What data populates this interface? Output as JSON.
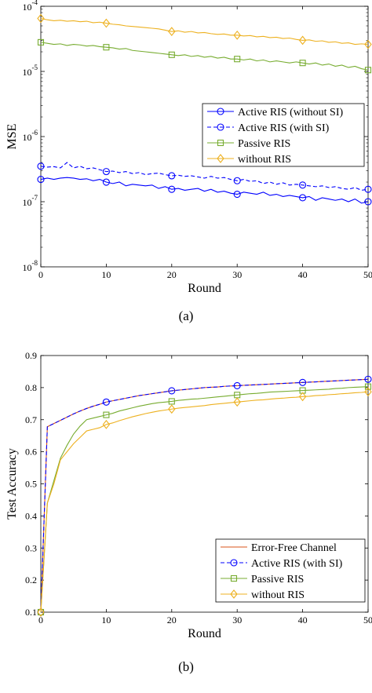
{
  "chart_data": [
    {
      "type": "line",
      "caption": "(a)",
      "xlabel": "Round",
      "ylabel": "MSE",
      "xlim": [
        0,
        50
      ],
      "ylim": [
        1e-08,
        0.0001
      ],
      "yscale": "log",
      "x_ticks": [
        0,
        10,
        20,
        30,
        40,
        50
      ],
      "y_tick_labels": [
        {
          "base": "10",
          "exp": "-8"
        },
        {
          "base": "10",
          "exp": "-7"
        },
        {
          "base": "10",
          "exp": "-6"
        },
        {
          "base": "10",
          "exp": "-5"
        },
        {
          "base": "10",
          "exp": "-4"
        }
      ],
      "grid": false,
      "legend_position": "center-right",
      "x": [
        0,
        1,
        2,
        3,
        4,
        5,
        6,
        7,
        8,
        9,
        10,
        11,
        12,
        13,
        14,
        15,
        16,
        17,
        18,
        19,
        20,
        21,
        22,
        23,
        24,
        25,
        26,
        27,
        28,
        29,
        30,
        31,
        32,
        33,
        34,
        35,
        36,
        37,
        38,
        39,
        40,
        41,
        42,
        43,
        44,
        45,
        46,
        47,
        48,
        49,
        50
      ],
      "series": [
        {
          "name": "Active RIS (without SI)",
          "color": "#0000ff",
          "dash": "solid",
          "marker": "circle",
          "values": [
            2.2e-07,
            2.3e-07,
            2.2e-07,
            2.3e-07,
            2.35e-07,
            2.3e-07,
            2.2e-07,
            2.25e-07,
            2.1e-07,
            2.2e-07,
            2e-07,
            1.9e-07,
            2e-07,
            1.75e-07,
            1.85e-07,
            1.8e-07,
            1.75e-07,
            1.8e-07,
            1.6e-07,
            1.7e-07,
            1.55e-07,
            1.6e-07,
            1.5e-07,
            1.55e-07,
            1.6e-07,
            1.45e-07,
            1.55e-07,
            1.4e-07,
            1.45e-07,
            1.35e-07,
            1.3e-07,
            1.4e-07,
            1.35e-07,
            1.3e-07,
            1.4e-07,
            1.25e-07,
            1.3e-07,
            1.2e-07,
            1.25e-07,
            1.2e-07,
            1.15e-07,
            1.2e-07,
            1.05e-07,
            1.15e-07,
            1.1e-07,
            1.05e-07,
            1.1e-07,
            1e-07,
            1.1e-07,
            9.5e-08,
            1e-07
          ]
        },
        {
          "name": "Active RIS (with SI)",
          "color": "#0000ff",
          "dash": "dashed",
          "marker": "circle",
          "values": [
            3.5e-07,
            3.4e-07,
            3.45e-07,
            3.3e-07,
            4e-07,
            3.3e-07,
            3.5e-07,
            3.2e-07,
            3.3e-07,
            3.1e-07,
            2.9e-07,
            2.95e-07,
            2.8e-07,
            2.9e-07,
            2.7e-07,
            2.8e-07,
            2.6e-07,
            2.7e-07,
            2.75e-07,
            2.6e-07,
            2.5e-07,
            2.55e-07,
            2.45e-07,
            2.5e-07,
            2.4e-07,
            2.3e-07,
            2.45e-07,
            2.3e-07,
            2.35e-07,
            2.2e-07,
            2.1e-07,
            2.2e-07,
            2.05e-07,
            2.1e-07,
            1.9e-07,
            2e-07,
            1.85e-07,
            1.95e-07,
            1.8e-07,
            1.85e-07,
            1.8e-07,
            1.75e-07,
            1.7e-07,
            1.75e-07,
            1.65e-07,
            1.7e-07,
            1.6e-07,
            1.55e-07,
            1.65e-07,
            1.5e-07,
            1.55e-07
          ]
        },
        {
          "name": "Passive RIS",
          "color": "#77ac30",
          "dash": "solid",
          "marker": "square",
          "values": [
            2.8e-05,
            2.7e-05,
            2.6e-05,
            2.65e-05,
            2.5e-05,
            2.6e-05,
            2.55e-05,
            2.45e-05,
            2.5e-05,
            2.4e-05,
            2.35e-05,
            2.3e-05,
            2.2e-05,
            2.25e-05,
            2.1e-05,
            2.05e-05,
            2e-05,
            1.95e-05,
            1.9e-05,
            1.85e-05,
            1.8e-05,
            1.75e-05,
            1.8e-05,
            1.7e-05,
            1.75e-05,
            1.65e-05,
            1.7e-05,
            1.6e-05,
            1.65e-05,
            1.55e-05,
            1.55e-05,
            1.5e-05,
            1.55e-05,
            1.45e-05,
            1.5e-05,
            1.4e-05,
            1.45e-05,
            1.4e-05,
            1.35e-05,
            1.4e-05,
            1.35e-05,
            1.3e-05,
            1.35e-05,
            1.25e-05,
            1.3e-05,
            1.2e-05,
            1.25e-05,
            1.15e-05,
            1.2e-05,
            1.1e-05,
            1.05e-05
          ]
        },
        {
          "name": "without RIS",
          "color": "#edb120",
          "dash": "solid",
          "marker": "diamond",
          "values": [
            6.5e-05,
            6.2e-05,
            6e-05,
            6.1e-05,
            5.9e-05,
            6e-05,
            5.8e-05,
            5.9e-05,
            5.6e-05,
            5.7e-05,
            5.5e-05,
            5.3e-05,
            5.2e-05,
            5e-05,
            4.9e-05,
            4.8e-05,
            4.7e-05,
            4.6e-05,
            4.5e-05,
            4.3e-05,
            4.1e-05,
            4.2e-05,
            4e-05,
            4.1e-05,
            3.9e-05,
            3.95e-05,
            3.8e-05,
            3.7e-05,
            3.75e-05,
            3.6e-05,
            3.6e-05,
            3.5e-05,
            3.55e-05,
            3.4e-05,
            3.45e-05,
            3.3e-05,
            3.35e-05,
            3.2e-05,
            3.25e-05,
            3.1e-05,
            3e-05,
            3.05e-05,
            2.9e-05,
            2.95e-05,
            2.8e-05,
            2.85e-05,
            2.7e-05,
            2.75e-05,
            2.6e-05,
            2.65e-05,
            2.6e-05
          ]
        }
      ]
    },
    {
      "type": "line",
      "caption": "(b)",
      "xlabel": "Round",
      "ylabel": "Test Accuracy",
      "xlim": [
        0,
        50
      ],
      "ylim": [
        0.1,
        0.9
      ],
      "yscale": "linear",
      "x_ticks": [
        0,
        10,
        20,
        30,
        40,
        50
      ],
      "y_ticks": [
        0.1,
        0.2,
        0.3,
        0.4,
        0.5,
        0.6,
        0.7,
        0.8,
        0.9
      ],
      "grid": false,
      "legend_position": "bottom-right",
      "x": [
        0,
        1,
        2,
        3,
        4,
        5,
        6,
        7,
        8,
        9,
        10,
        11,
        12,
        13,
        14,
        15,
        16,
        17,
        18,
        19,
        20,
        21,
        22,
        23,
        24,
        25,
        26,
        27,
        28,
        29,
        30,
        31,
        32,
        33,
        34,
        35,
        36,
        37,
        38,
        39,
        40,
        41,
        42,
        43,
        44,
        45,
        46,
        47,
        48,
        49,
        50
      ],
      "series": [
        {
          "name": "Error-Free Channel",
          "color": "#d95319",
          "dash": "solid",
          "marker": "none",
          "values": [
            0.1,
            0.678,
            0.688,
            0.698,
            0.708,
            0.718,
            0.727,
            0.735,
            0.742,
            0.748,
            0.755,
            0.759,
            0.763,
            0.767,
            0.771,
            0.775,
            0.778,
            0.781,
            0.784,
            0.787,
            0.79,
            0.792,
            0.794,
            0.796,
            0.798,
            0.8,
            0.801,
            0.802,
            0.804,
            0.805,
            0.806,
            0.807,
            0.808,
            0.809,
            0.81,
            0.811,
            0.812,
            0.813,
            0.814,
            0.815,
            0.816,
            0.817,
            0.818,
            0.819,
            0.82,
            0.821,
            0.822,
            0.823,
            0.824,
            0.825,
            0.826
          ]
        },
        {
          "name": "Active RIS (with SI)",
          "color": "#0000ff",
          "dash": "dashed",
          "marker": "circle",
          "values": [
            0.1,
            0.678,
            0.688,
            0.698,
            0.708,
            0.718,
            0.727,
            0.735,
            0.742,
            0.748,
            0.755,
            0.759,
            0.763,
            0.767,
            0.771,
            0.775,
            0.778,
            0.781,
            0.784,
            0.787,
            0.79,
            0.792,
            0.794,
            0.796,
            0.798,
            0.8,
            0.801,
            0.802,
            0.804,
            0.805,
            0.806,
            0.807,
            0.808,
            0.809,
            0.81,
            0.811,
            0.812,
            0.813,
            0.814,
            0.815,
            0.816,
            0.817,
            0.818,
            0.819,
            0.82,
            0.821,
            0.822,
            0.823,
            0.824,
            0.825,
            0.826
          ]
        },
        {
          "name": "Passive RIS",
          "color": "#77ac30",
          "dash": "solid",
          "marker": "square",
          "values": [
            0.1,
            0.44,
            0.51,
            0.58,
            0.62,
            0.655,
            0.68,
            0.7,
            0.705,
            0.71,
            0.715,
            0.72,
            0.727,
            0.732,
            0.737,
            0.742,
            0.746,
            0.75,
            0.753,
            0.755,
            0.757,
            0.76,
            0.762,
            0.764,
            0.765,
            0.767,
            0.769,
            0.771,
            0.773,
            0.775,
            0.777,
            0.779,
            0.781,
            0.782,
            0.784,
            0.786,
            0.787,
            0.788,
            0.789,
            0.79,
            0.791,
            0.792,
            0.793,
            0.794,
            0.795,
            0.797,
            0.798,
            0.8,
            0.801,
            0.802,
            0.803
          ]
        },
        {
          "name": "without RIS",
          "color": "#edb120",
          "dash": "solid",
          "marker": "diamond",
          "values": [
            0.1,
            0.44,
            0.5,
            0.575,
            0.6,
            0.625,
            0.645,
            0.665,
            0.67,
            0.675,
            0.685,
            0.69,
            0.697,
            0.703,
            0.709,
            0.714,
            0.719,
            0.723,
            0.727,
            0.73,
            0.733,
            0.736,
            0.738,
            0.74,
            0.742,
            0.744,
            0.747,
            0.749,
            0.751,
            0.753,
            0.755,
            0.757,
            0.759,
            0.761,
            0.762,
            0.764,
            0.766,
            0.767,
            0.769,
            0.77,
            0.772,
            0.773,
            0.775,
            0.776,
            0.778,
            0.779,
            0.781,
            0.782,
            0.784,
            0.785,
            0.787
          ]
        }
      ]
    }
  ]
}
